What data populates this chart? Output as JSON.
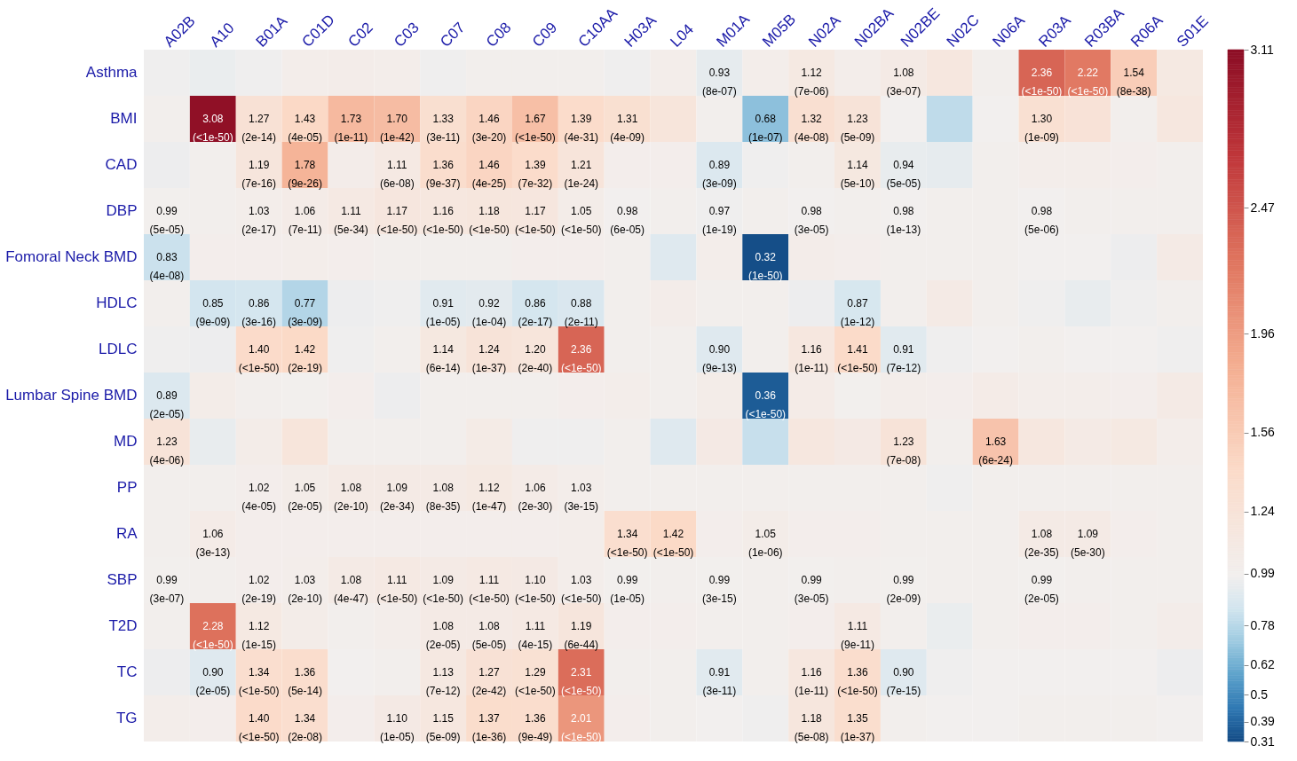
{
  "chart_data": {
    "type": "heatmap",
    "categories": [
      "A02B",
      "A10",
      "B01A",
      "C01D",
      "C02",
      "C03",
      "C07",
      "C08",
      "C09",
      "C10AA",
      "H03A",
      "L04",
      "M01A",
      "M05B",
      "N02A",
      "N02BA",
      "N02BE",
      "N02C",
      "N06A",
      "R03A",
      "R03BA",
      "R06A",
      "S01E"
    ],
    "y_categories": [
      "Asthma",
      "BMI",
      "CAD",
      "DBP",
      "Fomoral Neck BMD",
      "HDLC",
      "LDLC",
      "Lumbar Spine BMD",
      "MD",
      "PP",
      "RA",
      "SBP",
      "T2D",
      "TC",
      "TG"
    ],
    "cells": [
      [
        0.97,
        0.95,
        0.97,
        1.03,
        1.04,
        1.03,
        0.97,
        1.0,
        1.0,
        1.0,
        0.97,
        1.03,
        0.93,
        1.03,
        1.12,
        1.03,
        1.08,
        1.15,
        1.0,
        2.36,
        2.22,
        1.54,
        1.12
      ],
      [
        1.0,
        3.08,
        1.27,
        1.43,
        1.73,
        1.7,
        1.33,
        1.46,
        1.67,
        1.39,
        1.31,
        1.2,
        1.0,
        0.68,
        1.32,
        1.23,
        0.98,
        0.8,
        0.98,
        1.3,
        1.25,
        1.0,
        1.15
      ],
      [
        0.96,
        1.0,
        1.19,
        1.78,
        1.04,
        1.11,
        1.36,
        1.46,
        1.39,
        1.21,
        1.02,
        1.02,
        0.89,
        0.97,
        1.0,
        1.14,
        0.94,
        0.93,
        1.0,
        1.03,
        1.03,
        1.02,
        1.0
      ],
      [
        0.99,
        1.0,
        1.03,
        1.06,
        1.11,
        1.17,
        1.16,
        1.18,
        1.17,
        1.05,
        0.98,
        1.0,
        0.97,
        1.0,
        0.98,
        1.0,
        0.98,
        1.0,
        1.0,
        0.98,
        1.0,
        1.0,
        1.0
      ],
      [
        0.83,
        1.02,
        1.02,
        1.03,
        1.02,
        1.0,
        1.0,
        1.0,
        1.02,
        1.02,
        1.0,
        0.9,
        1.03,
        0.32,
        1.04,
        1.02,
        1.0,
        1.0,
        1.0,
        0.98,
        0.98,
        0.96,
        1.08
      ],
      [
        1.0,
        0.85,
        0.86,
        0.77,
        0.96,
        0.97,
        0.91,
        0.92,
        0.86,
        0.88,
        1.0,
        1.04,
        1.0,
        1.0,
        0.96,
        0.87,
        1.0,
        1.08,
        1.0,
        0.97,
        0.94,
        0.97,
        1.0
      ],
      [
        0.97,
        0.96,
        1.4,
        1.42,
        0.97,
        1.0,
        1.14,
        1.24,
        1.2,
        2.36,
        1.0,
        1.0,
        0.9,
        1.0,
        1.16,
        1.41,
        0.91,
        0.97,
        0.98,
        1.0,
        0.98,
        0.98,
        0.97
      ],
      [
        0.89,
        1.05,
        1.0,
        0.99,
        1.02,
        0.96,
        1.0,
        1.0,
        1.0,
        1.02,
        1.03,
        1.0,
        1.05,
        0.36,
        1.06,
        0.99,
        1.03,
        1.02,
        1.06,
        1.03,
        1.03,
        1.02,
        1.08
      ],
      [
        1.23,
        0.94,
        1.05,
        1.2,
        1.0,
        1.0,
        1.0,
        1.07,
        0.97,
        0.97,
        1.0,
        0.9,
        1.1,
        0.82,
        1.15,
        1.1,
        1.23,
        1.0,
        1.63,
        1.15,
        1.08,
        1.12,
        1.03
      ],
      [
        1.0,
        1.0,
        1.02,
        1.05,
        1.08,
        1.09,
        1.08,
        1.12,
        1.06,
        1.03,
        1.0,
        1.0,
        1.0,
        1.0,
        1.0,
        1.0,
        1.0,
        0.97,
        1.0,
        1.0,
        1.0,
        1.0,
        1.0
      ],
      [
        1.0,
        1.06,
        1.02,
        1.02,
        1.02,
        1.02,
        1.02,
        1.02,
        1.02,
        1.03,
        1.34,
        1.42,
        1.02,
        1.05,
        1.02,
        1.02,
        1.0,
        1.0,
        1.0,
        1.08,
        1.09,
        1.02,
        1.0
      ],
      [
        0.99,
        1.0,
        1.02,
        1.03,
        1.08,
        1.11,
        1.09,
        1.11,
        1.1,
        1.03,
        0.99,
        1.0,
        0.99,
        1.0,
        0.99,
        1.0,
        0.99,
        1.0,
        1.0,
        0.99,
        1.0,
        1.0,
        1.0
      ],
      [
        1.0,
        2.28,
        1.12,
        1.05,
        1.0,
        1.03,
        1.08,
        1.08,
        1.11,
        1.19,
        1.02,
        1.02,
        1.0,
        1.0,
        1.02,
        1.11,
        1.0,
        0.95,
        1.0,
        1.02,
        1.02,
        1.0,
        1.04
      ],
      [
        0.96,
        0.9,
        1.34,
        1.36,
        0.98,
        1.0,
        1.13,
        1.27,
        1.29,
        2.31,
        1.0,
        1.0,
        0.91,
        1.0,
        1.16,
        1.36,
        0.9,
        0.97,
        0.98,
        0.98,
        0.98,
        0.98,
        0.96
      ],
      [
        1.03,
        1.02,
        1.4,
        1.34,
        1.02,
        1.1,
        1.15,
        1.37,
        1.36,
        2.01,
        1.02,
        1.0,
        0.98,
        0.97,
        1.18,
        1.35,
        1.0,
        0.98,
        0.98,
        1.0,
        1.0,
        1.0,
        0.98
      ]
    ],
    "cell_labels": [
      [
        null,
        null,
        null,
        null,
        null,
        null,
        null,
        null,
        null,
        null,
        null,
        null,
        "0.93\n(8e-07)",
        null,
        "1.12\n(7e-06)",
        null,
        "1.08\n(3e-07)",
        null,
        null,
        "2.36\n(<1e-50)",
        "2.22\n(<1e-50)",
        "1.54\n(8e-38)",
        null
      ],
      [
        null,
        "3.08\n(<1e-50)",
        "1.27\n(2e-14)",
        "1.43\n(4e-05)",
        "1.73\n(1e-11)",
        "1.70\n(1e-42)",
        "1.33\n(3e-11)",
        "1.46\n(3e-20)",
        "1.67\n(<1e-50)",
        "1.39\n(4e-31)",
        "1.31\n(4e-09)",
        null,
        null,
        "0.68\n(1e-07)",
        "1.32\n(4e-08)",
        "1.23\n(5e-09)",
        null,
        null,
        null,
        "1.30\n(1e-09)",
        null,
        null,
        null
      ],
      [
        null,
        null,
        "1.19\n(7e-16)",
        "1.78\n(9e-26)",
        null,
        "1.11\n(6e-08)",
        "1.36\n(9e-37)",
        "1.46\n(4e-25)",
        "1.39\n(7e-32)",
        "1.21\n(1e-24)",
        null,
        null,
        "0.89\n(3e-09)",
        null,
        null,
        "1.14\n(5e-10)",
        "0.94\n(5e-05)",
        null,
        null,
        null,
        null,
        null,
        null
      ],
      [
        "0.99\n(5e-05)",
        null,
        "1.03\n(2e-17)",
        "1.06\n(7e-11)",
        "1.11\n(5e-34)",
        "1.17\n(<1e-50)",
        "1.16\n(<1e-50)",
        "1.18\n(<1e-50)",
        "1.17\n(<1e-50)",
        "1.05\n(<1e-50)",
        "0.98\n(6e-05)",
        null,
        "0.97\n(1e-19)",
        null,
        "0.98\n(3e-05)",
        null,
        "0.98\n(1e-13)",
        null,
        null,
        "0.98\n(5e-06)",
        null,
        null,
        null
      ],
      [
        "0.83\n(4e-08)",
        null,
        null,
        null,
        null,
        null,
        null,
        null,
        null,
        null,
        null,
        null,
        null,
        "0.32\n(1e-50)",
        null,
        null,
        null,
        null,
        null,
        null,
        null,
        null,
        null
      ],
      [
        null,
        "0.85\n(9e-09)",
        "0.86\n(3e-16)",
        "0.77\n(3e-09)",
        null,
        null,
        "0.91\n(1e-05)",
        "0.92\n(1e-04)",
        "0.86\n(2e-17)",
        "0.88\n(2e-11)",
        null,
        null,
        null,
        null,
        null,
        "0.87\n(1e-12)",
        null,
        null,
        null,
        null,
        null,
        null,
        null
      ],
      [
        null,
        null,
        "1.40\n(<1e-50)",
        "1.42\n(2e-19)",
        null,
        null,
        "1.14\n(6e-14)",
        "1.24\n(1e-37)",
        "1.20\n(2e-40)",
        "2.36\n(<1e-50)",
        null,
        null,
        "0.90\n(9e-13)",
        null,
        "1.16\n(1e-11)",
        "1.41\n(<1e-50)",
        "0.91\n(7e-12)",
        null,
        null,
        null,
        null,
        null,
        null
      ],
      [
        "0.89\n(2e-05)",
        null,
        null,
        null,
        null,
        null,
        null,
        null,
        null,
        null,
        null,
        null,
        null,
        "0.36\n(<1e-50)",
        null,
        null,
        null,
        null,
        null,
        null,
        null,
        null,
        null
      ],
      [
        "1.23\n(4e-06)",
        null,
        null,
        null,
        null,
        null,
        null,
        null,
        null,
        null,
        null,
        null,
        null,
        null,
        null,
        null,
        "1.23\n(7e-08)",
        null,
        "1.63\n(6e-24)",
        null,
        null,
        null,
        null
      ],
      [
        null,
        null,
        "1.02\n(4e-05)",
        "1.05\n(2e-05)",
        "1.08\n(2e-10)",
        "1.09\n(2e-34)",
        "1.08\n(8e-35)",
        "1.12\n(1e-47)",
        "1.06\n(2e-30)",
        "1.03\n(3e-15)",
        null,
        null,
        null,
        null,
        null,
        null,
        null,
        null,
        null,
        null,
        null,
        null,
        null
      ],
      [
        null,
        "1.06\n(3e-13)",
        null,
        null,
        null,
        null,
        null,
        null,
        null,
        null,
        "1.34\n(<1e-50)",
        "1.42\n(<1e-50)",
        null,
        "1.05\n(1e-06)",
        null,
        null,
        null,
        null,
        null,
        "1.08\n(2e-35)",
        "1.09\n(5e-30)",
        null,
        null
      ],
      [
        "0.99\n(3e-07)",
        null,
        "1.02\n(2e-19)",
        "1.03\n(2e-10)",
        "1.08\n(4e-47)",
        "1.11\n(<1e-50)",
        "1.09\n(<1e-50)",
        "1.11\n(<1e-50)",
        "1.10\n(<1e-50)",
        "1.03\n(<1e-50)",
        "0.99\n(1e-05)",
        null,
        "0.99\n(3e-15)",
        null,
        "0.99\n(3e-05)",
        null,
        "0.99\n(2e-09)",
        null,
        null,
        "0.99\n(2e-05)",
        null,
        null,
        null
      ],
      [
        null,
        "2.28\n(<1e-50)",
        "1.12\n(1e-15)",
        null,
        null,
        null,
        "1.08\n(2e-05)",
        "1.08\n(5e-05)",
        "1.11\n(4e-15)",
        "1.19\n(6e-44)",
        null,
        null,
        null,
        null,
        null,
        "1.11\n(9e-11)",
        null,
        null,
        null,
        null,
        null,
        null,
        null
      ],
      [
        null,
        "0.90\n(2e-05)",
        "1.34\n(<1e-50)",
        "1.36\n(5e-14)",
        null,
        null,
        "1.13\n(7e-12)",
        "1.27\n(2e-42)",
        "1.29\n(<1e-50)",
        "2.31\n(<1e-50)",
        null,
        null,
        "0.91\n(3e-11)",
        null,
        "1.16\n(1e-11)",
        "1.36\n(<1e-50)",
        "0.90\n(7e-15)",
        null,
        null,
        null,
        null,
        null,
        null
      ],
      [
        null,
        null,
        "1.40\n(<1e-50)",
        "1.34\n(2e-08)",
        null,
        "1.10\n(1e-05)",
        "1.15\n(5e-09)",
        "1.37\n(1e-36)",
        "1.36\n(9e-49)",
        "2.01\n(<1e-50)",
        null,
        null,
        null,
        null,
        "1.18\n(5e-08)",
        "1.35\n(1e-37)",
        null,
        null,
        null,
        null,
        null,
        null,
        null
      ]
    ],
    "clim": [
      0.31,
      3.11
    ],
    "cticks": [
      0.31,
      0.39,
      0.5,
      0.62,
      0.78,
      0.99,
      1.24,
      1.56,
      1.96,
      2.47,
      3.11
    ]
  }
}
